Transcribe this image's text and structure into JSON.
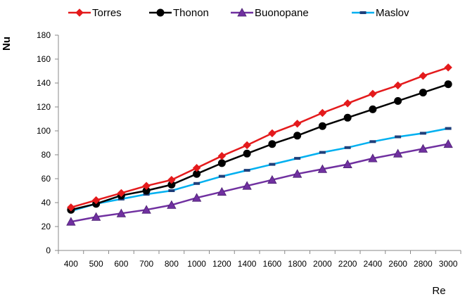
{
  "chart_data": {
    "type": "line",
    "title": "",
    "xlabel": "Re",
    "ylabel": "Nu",
    "categories": [
      "400",
      "500",
      "600",
      "700",
      "800",
      "1000",
      "1200",
      "1400",
      "1600",
      "1800",
      "2000",
      "2200",
      "2400",
      "2600",
      "2800",
      "3000"
    ],
    "ylim": [
      0,
      180
    ],
    "yticks": [
      0,
      20,
      40,
      60,
      80,
      100,
      120,
      140,
      160,
      180
    ],
    "grid": false,
    "legend_position": "top",
    "series": [
      {
        "name": "Torres",
        "color": "#e41a1c",
        "marker": "diamond",
        "values": [
          36,
          42,
          48,
          54,
          59,
          69,
          79,
          88,
          98,
          106,
          115,
          123,
          131,
          138,
          146,
          153
        ]
      },
      {
        "name": "Thonon",
        "color": "#000000",
        "marker": "circle",
        "values": [
          34,
          39,
          46,
          50,
          55,
          64,
          73,
          81,
          89,
          96,
          104,
          111,
          118,
          125,
          132,
          139
        ]
      },
      {
        "name": "Buonopane",
        "color": "#7030a0",
        "marker": "triangle",
        "values": [
          24,
          28,
          31,
          34,
          38,
          44,
          49,
          54,
          59,
          64,
          68,
          72,
          77,
          81,
          85,
          89
        ]
      },
      {
        "name": "Maslov",
        "color": "#00b0f0",
        "marker": "dash",
        "values": [
          33,
          39,
          43,
          47,
          50,
          56,
          62,
          67,
          72,
          77,
          82,
          86,
          91,
          95,
          98,
          102
        ]
      }
    ]
  }
}
